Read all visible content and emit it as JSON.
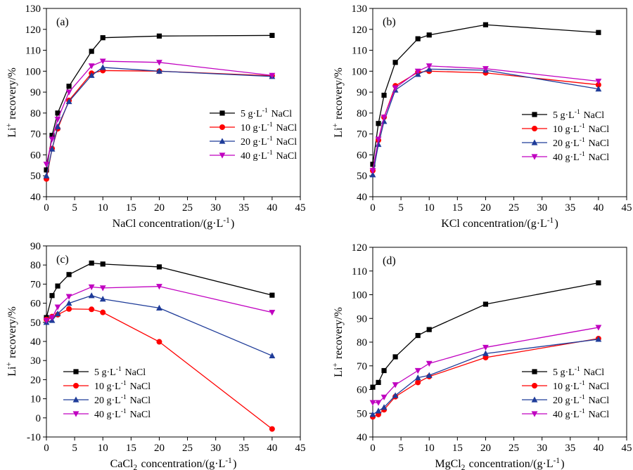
{
  "chart_data": [
    {
      "type": "line",
      "panel_label": "(a)",
      "xlabel": "NaCl concentration/(g·L⁻¹)",
      "ylabel": "Li⁺ recovery/%",
      "xlim": [
        0,
        45
      ],
      "ylim": [
        40,
        130
      ],
      "xticks": [
        "0",
        "5",
        "10",
        "15",
        "20",
        "25",
        "30",
        "35",
        "40",
        "45"
      ],
      "yticks": [
        "40",
        "50",
        "60",
        "70",
        "80",
        "90",
        "100",
        "110",
        "120",
        "130"
      ],
      "grid": false,
      "legend_position": "right-middle",
      "x": [
        0,
        1,
        2,
        4,
        8,
        10,
        20,
        40
      ],
      "series": [
        {
          "name": "5  g·L⁻¹ NaCl",
          "color": "#000000",
          "marker": "square",
          "values": [
            52.8,
            69.3,
            80.0,
            92.8,
            109.5,
            116.0,
            116.8,
            117.1
          ]
        },
        {
          "name": "10  g·L⁻¹ NaCl",
          "color": "#ff0000",
          "marker": "circle",
          "values": [
            48.5,
            63.0,
            72.5,
            86.0,
            99.0,
            100.3,
            100.0,
            97.8
          ]
        },
        {
          "name": "20  g·L⁻¹ NaCl",
          "color": "#1f3c99",
          "marker": "triangle-up",
          "values": [
            50.0,
            62.8,
            73.5,
            85.5,
            98.0,
            101.8,
            100.0,
            97.5
          ]
        },
        {
          "name": "40  g·L⁻¹ NaCl",
          "color": "#c000c0",
          "marker": "triangle-down",
          "values": [
            55.5,
            67.5,
            77.0,
            90.0,
            102.5,
            104.8,
            104.2,
            98.0
          ]
        }
      ]
    },
    {
      "type": "line",
      "panel_label": "(b)",
      "xlabel": "KCl concentration/(g·L⁻¹)",
      "ylabel": "Li⁺ recovery/%",
      "xlim": [
        0,
        45
      ],
      "ylim": [
        40,
        130
      ],
      "xticks": [
        "0",
        "5",
        "10",
        "15",
        "20",
        "25",
        "30",
        "35",
        "40",
        "45"
      ],
      "yticks": [
        "40",
        "50",
        "60",
        "70",
        "80",
        "90",
        "100",
        "110",
        "120",
        "130"
      ],
      "grid": false,
      "legend_position": "right-middle",
      "x": [
        0,
        1,
        2,
        4,
        8,
        10,
        20,
        40
      ],
      "series": [
        {
          "name": "5  g·L⁻¹ NaCl",
          "color": "#000000",
          "marker": "square",
          "values": [
            55.5,
            75.0,
            88.5,
            104.2,
            115.5,
            117.3,
            122.2,
            118.5
          ]
        },
        {
          "name": "10  g·L⁻¹ NaCl",
          "color": "#ff0000",
          "marker": "circle",
          "values": [
            52.5,
            67.0,
            78.0,
            93.0,
            99.5,
            100.0,
            99.2,
            93.5
          ]
        },
        {
          "name": "20  g·L⁻¹ NaCl",
          "color": "#1f3c99",
          "marker": "triangle-up",
          "values": [
            50.5,
            65.0,
            76.0,
            91.0,
            98.5,
            101.0,
            100.5,
            91.5
          ]
        },
        {
          "name": "40  g·L⁻¹ NaCl",
          "color": "#c000c0",
          "marker": "triangle-down",
          "values": [
            52.5,
            67.5,
            78.0,
            92.0,
            100.0,
            102.5,
            101.2,
            95.2
          ]
        }
      ]
    },
    {
      "type": "line",
      "panel_label": "(c)",
      "xlabel": "CaCl₂ concentration/(g·L⁻¹)",
      "ylabel": "Li⁺ recovery/%",
      "xlim": [
        0,
        45
      ],
      "ylim": [
        -10,
        90
      ],
      "xticks": [
        "0",
        "5",
        "10",
        "15",
        "20",
        "25",
        "30",
        "35",
        "40",
        "45"
      ],
      "yticks": [
        "-10",
        "0",
        "10",
        "20",
        "30",
        "40",
        "50",
        "60",
        "70",
        "80",
        "90"
      ],
      "grid": false,
      "legend_position": "left-bottom",
      "x": [
        0,
        1,
        2,
        4,
        8,
        10,
        20,
        40
      ],
      "series": [
        {
          "name": "5  g·L⁻¹ NaCl",
          "color": "#000000",
          "marker": "square",
          "values": [
            52.5,
            64.0,
            69.0,
            75.0,
            81.0,
            80.5,
            79.0,
            64.2
          ]
        },
        {
          "name": "10  g·L⁻¹ NaCl",
          "color": "#ff0000",
          "marker": "circle",
          "values": [
            51.5,
            53.0,
            54.0,
            57.0,
            56.8,
            55.2,
            39.8,
            -5.8
          ]
        },
        {
          "name": "20  g·L⁻¹ NaCl",
          "color": "#1f3c99",
          "marker": "triangle-up",
          "values": [
            50.0,
            51.0,
            54.5,
            60.0,
            64.0,
            62.2,
            57.5,
            32.5
          ]
        },
        {
          "name": "40  g·L⁻¹ NaCl",
          "color": "#c000c0",
          "marker": "triangle-down",
          "values": [
            51.0,
            52.5,
            58.0,
            63.5,
            68.5,
            68.0,
            68.8,
            55.2
          ]
        }
      ]
    },
    {
      "type": "line",
      "panel_label": "(d)",
      "xlabel": "MgCl₂ concentration/(g·L⁻¹)",
      "ylabel": "Li⁺ recovery/%",
      "xlim": [
        0,
        45
      ],
      "ylim": [
        40,
        120
      ],
      "xticks": [
        "0",
        "5",
        "10",
        "15",
        "20",
        "25",
        "30",
        "35",
        "40",
        "45"
      ],
      "yticks": [
        "40",
        "50",
        "60",
        "70",
        "80",
        "90",
        "100",
        "110",
        "120"
      ],
      "grid": false,
      "legend_position": "right-bottom",
      "x": [
        0,
        1,
        2,
        4,
        8,
        10,
        20,
        40
      ],
      "series": [
        {
          "name": "5  g·L⁻¹ NaCl",
          "color": "#000000",
          "marker": "square",
          "values": [
            61.0,
            63.0,
            68.0,
            73.8,
            82.8,
            85.3,
            96.0,
            105.0
          ]
        },
        {
          "name": "10  g·L⁻¹ NaCl",
          "color": "#ff0000",
          "marker": "circle",
          "values": [
            48.5,
            49.5,
            51.5,
            57.0,
            63.0,
            65.5,
            73.5,
            81.5
          ]
        },
        {
          "name": "20  g·L⁻¹ NaCl",
          "color": "#1f3c99",
          "marker": "triangle-up",
          "values": [
            49.5,
            51.0,
            52.5,
            57.5,
            65.0,
            66.0,
            75.2,
            81.2
          ]
        },
        {
          "name": "40  g·L⁻¹ NaCl",
          "color": "#c000c0",
          "marker": "triangle-down",
          "values": [
            54.5,
            54.5,
            56.8,
            62.0,
            68.0,
            71.0,
            77.8,
            86.2
          ]
        }
      ]
    }
  ]
}
